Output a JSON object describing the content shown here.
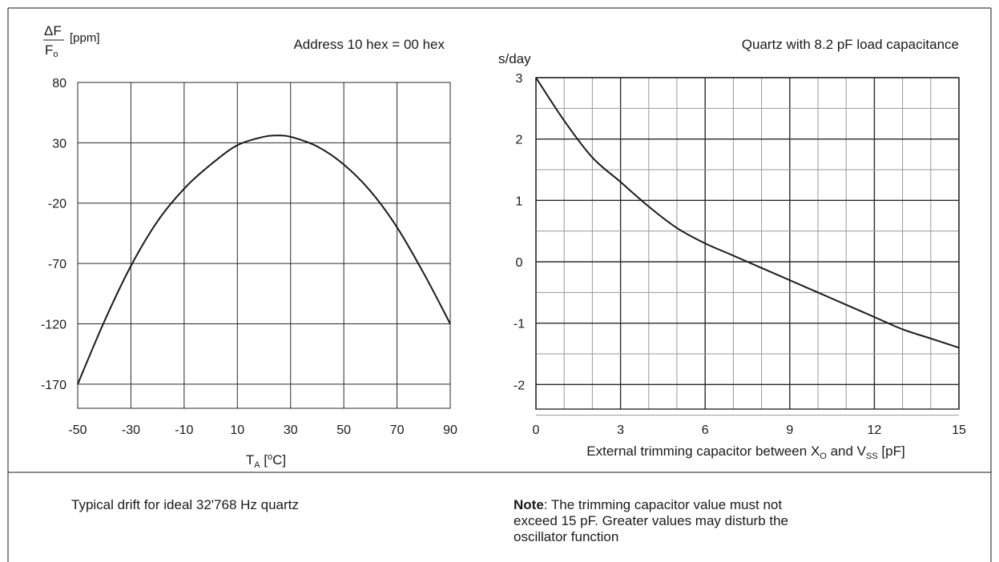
{
  "chart_data": [
    {
      "type": "line",
      "title": "Address 10 hex = 00 hex",
      "ylabel_top": "ΔF",
      "ylabel_bottom": "F",
      "ylabel_bottom_sub": "o",
      "ylabel_unit": "[ppm]",
      "xlabel_main": "T",
      "xlabel_sub": "A",
      "xlabel_rest_pre": " [",
      "xlabel_sup": "o",
      "xlabel_rest_post": "C]",
      "xlim": [
        -50,
        90
      ],
      "ylim": [
        -190,
        80
      ],
      "x_ticks": [
        -50,
        -30,
        -10,
        10,
        30,
        50,
        70,
        90
      ],
      "y_ticks": [
        80,
        30,
        -20,
        -70,
        -120,
        -170
      ],
      "grid": true,
      "series": [
        {
          "x": [
            -50,
            -40,
            -30,
            -20,
            -10,
            0,
            10,
            20,
            25,
            30,
            40,
            50,
            60,
            70,
            80,
            90
          ],
          "y": [
            -170,
            -118,
            -72,
            -35,
            -8,
            12,
            28,
            35,
            36,
            35,
            27,
            12,
            -10,
            -40,
            -78,
            -120
          ]
        }
      ]
    },
    {
      "type": "line",
      "title": "Quartz with 8.2 pF load capacitance",
      "ylabel": "s/day",
      "xlabel_pre": "External trimming capacitor between X",
      "xlabel_sub1": "O",
      "xlabel_mid": " and V",
      "xlabel_sub2": "SS",
      "xlabel_post": " [pF]",
      "xlim": [
        0,
        15
      ],
      "ylim": [
        -2.4,
        3
      ],
      "x_ticks": [
        0,
        3,
        6,
        9,
        12,
        15
      ],
      "y_ticks": [
        3,
        2,
        1,
        0,
        -1,
        -2
      ],
      "grid": true,
      "series": [
        {
          "x": [
            0,
            1,
            2,
            3,
            4,
            5,
            6,
            7,
            8,
            9,
            10,
            11,
            12,
            13,
            14,
            15
          ],
          "y": [
            3.0,
            2.3,
            1.7,
            1.3,
            0.9,
            0.55,
            0.3,
            0.1,
            -0.1,
            -0.3,
            -0.5,
            -0.7,
            -0.9,
            -1.1,
            -1.25,
            -1.4
          ]
        }
      ]
    }
  ],
  "captions": {
    "left": "Typical drift for ideal 32'768 Hz quartz",
    "note_bold": "Note",
    "note_rest": ": The trimming capacitor value must not exceed 15 pF.  Greater values may disturb the oscillator function"
  },
  "colors": {
    "line": "#1a1a1a",
    "grid_major": "#2a2a2a",
    "grid_minor": "#9a9a9a"
  }
}
